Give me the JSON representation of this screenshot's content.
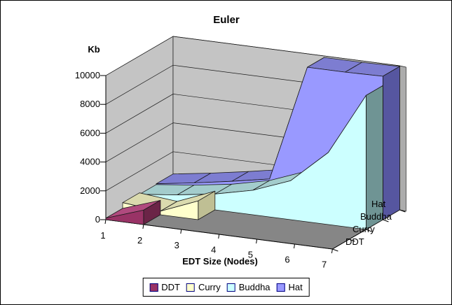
{
  "window": {
    "background": "#FFFFFF",
    "border_color": "#000000"
  },
  "frame": {
    "wall_color": "#C4C4C4",
    "wall_edge_color": "#ACACAC",
    "floor_color": "#868686",
    "line_color": "#1A1A1A"
  },
  "chart_data": {
    "type": "area",
    "is_3d": true,
    "title": "Euler",
    "xlabel": "EDT Size (Nodes)",
    "ylabel": "Kb",
    "x": [
      1,
      2,
      3,
      4,
      5,
      6,
      7
    ],
    "ylim": [
      0,
      10000
    ],
    "y_ticks": [
      0,
      2000,
      4000,
      6000,
      8000,
      10000
    ],
    "grid": true,
    "legend_position": "bottom",
    "series_axis_labels_front_to_back": [
      "DDT",
      "Curry",
      "Buddha",
      "Hat"
    ],
    "series": [
      {
        "name": "DDT",
        "values": [
          100,
          1000
        ],
        "color": "#993366",
        "top_color": "#B04A7E",
        "cap_color": "#6B2447"
      },
      {
        "name": "Curry",
        "values": [
          500,
          250,
          1300
        ],
        "color": "#FFFFCC",
        "top_color": "#DADAAE",
        "cap_color": "#BFBF94"
      },
      {
        "name": "Buddha",
        "values": [
          400,
          700,
          1100,
          1700,
          2700,
          5000,
          9300
        ],
        "color": "#CCFFFF",
        "top_color": "#A3CCCC",
        "cap_color": "#6F9494"
      },
      {
        "name": "Hat",
        "values": [
          450,
          850,
          1300,
          1800,
          9900,
          9900,
          9950
        ],
        "color": "#9999FF",
        "top_color": "#7D7DD1",
        "cap_color": "#5656A0"
      }
    ],
    "legend_swatch_border": "#000080"
  }
}
